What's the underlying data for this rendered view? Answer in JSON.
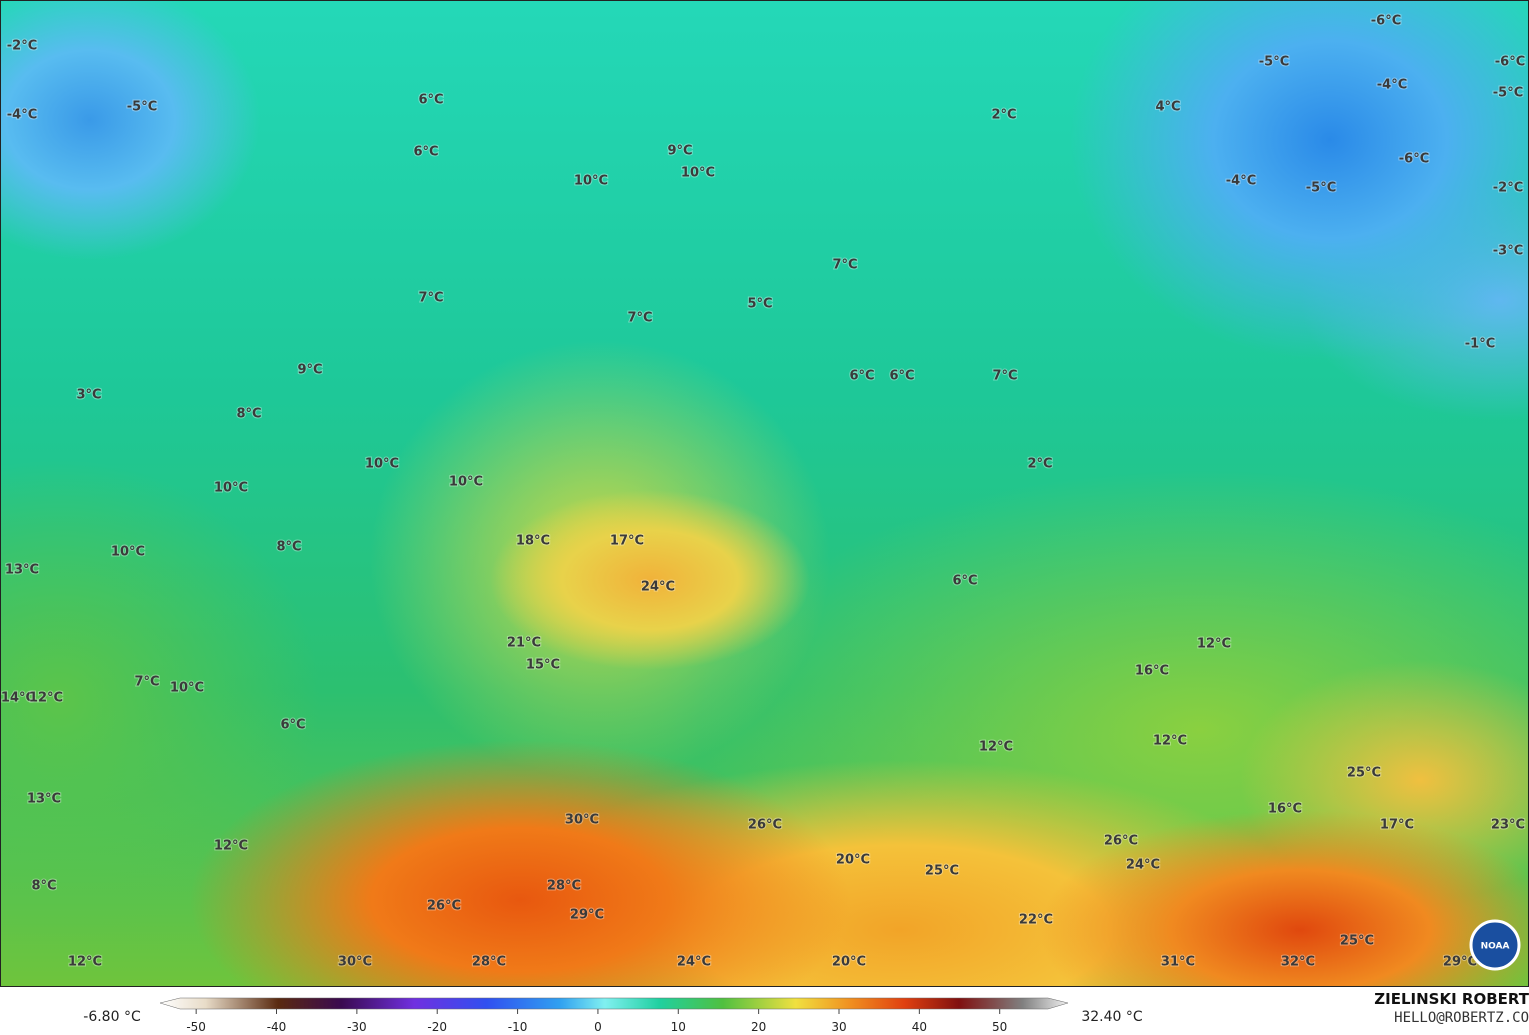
{
  "map": {
    "labels": [
      "-2°C",
      "-4°C",
      "-5°C",
      "6°C",
      "6°C",
      "9°C",
      "10°C",
      "10°C",
      "2°C",
      "4°C",
      "-5°C",
      "-6°C",
      "-6°C",
      "-4°C",
      "-5°C",
      "-6°C",
      "-4°C",
      "-5°C",
      "-2°C",
      "-3°C",
      "-1°C",
      "7°C",
      "5°C",
      "7°C",
      "7°C",
      "9°C",
      "6°C",
      "6°C",
      "7°C",
      "3°C",
      "8°C",
      "10°C",
      "10°C",
      "10°C",
      "2°C",
      "18°C",
      "17°C",
      "8°C",
      "10°C",
      "13°C",
      "24°C",
      "6°C",
      "21°C",
      "12°C",
      "15°C",
      "16°C",
      "7°C",
      "10°C",
      "14°C",
      "12°C",
      "6°C",
      "12°C",
      "12°C",
      "25°C",
      "13°C",
      "16°C",
      "30°C",
      "26°C",
      "17°C",
      "23°C",
      "12°C",
      "26°C",
      "20°C",
      "24°C",
      "25°C",
      "8°C",
      "28°C",
      "29°C",
      "26°C",
      "22°C",
      "25°C",
      "12°C",
      "30°C",
      "28°C",
      "24°C",
      "20°C",
      "31°C",
      "32°C",
      "29°C"
    ],
    "logo": "NOAA"
  },
  "colorbar": {
    "min_label": "-6.80 °C",
    "max_label": "32.40 °C",
    "range": [
      -54.5,
      58.5
    ],
    "ticks": [
      -50,
      -40,
      -30,
      -20,
      -10,
      0,
      10,
      20,
      30,
      40,
      50
    ]
  },
  "credit": {
    "name": "ZIELINSKI ROBERT",
    "email": "HELLO@ROBERTZ.CO"
  }
}
